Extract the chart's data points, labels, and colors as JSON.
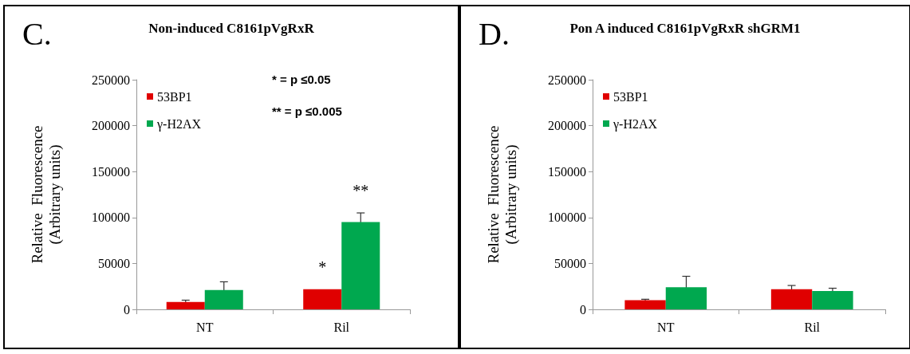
{
  "chart_data": [
    {
      "type": "bar",
      "title": "Non-induced C8161pVgRxR",
      "ylabel": "Relative  Fluorescence\n(Arbitrary units)",
      "categories": [
        "NT",
        "Ril"
      ],
      "series": [
        {
          "name": "53BP1",
          "color": "#e00000",
          "values": [
            8000,
            22000
          ],
          "errors": [
            2000,
            null
          ]
        },
        {
          "name": "γ-H2AX",
          "color": "#00a84f",
          "values": [
            21000,
            95000
          ],
          "errors": [
            9000,
            10000
          ]
        }
      ],
      "ylim": [
        0,
        250000
      ],
      "yticks": [
        0,
        50000,
        100000,
        150000,
        200000,
        250000
      ],
      "grid": false,
      "legend": "top left",
      "annotations": [
        "C.",
        "* = p ≤0.05",
        "** = p ≤0.005",
        {
          "text": "*",
          "x": "Ril",
          "y": 22000
        },
        {
          "text": "**",
          "x": "Ril",
          "y": 95000
        }
      ]
    },
    {
      "type": "bar",
      "title": "Pon A induced C8161pVgRxR shGRM1",
      "ylabel": "Relative  Fluorescence\n(Arbitrary units)",
      "categories": [
        "NT",
        "Ril"
      ],
      "series": [
        {
          "name": "53BP1",
          "color": "#e00000",
          "values": [
            10000,
            22000
          ],
          "errors": [
            1000,
            4000
          ]
        },
        {
          "name": "γ-H2AX",
          "color": "#00a84f",
          "values": [
            24000,
            20000
          ],
          "errors": [
            12000,
            3000
          ]
        }
      ],
      "ylim": [
        0,
        250000
      ],
      "yticks": [
        0,
        50000,
        100000,
        150000,
        200000,
        250000
      ],
      "grid": false,
      "legend": "top left",
      "annotations": [
        "D."
      ]
    }
  ]
}
